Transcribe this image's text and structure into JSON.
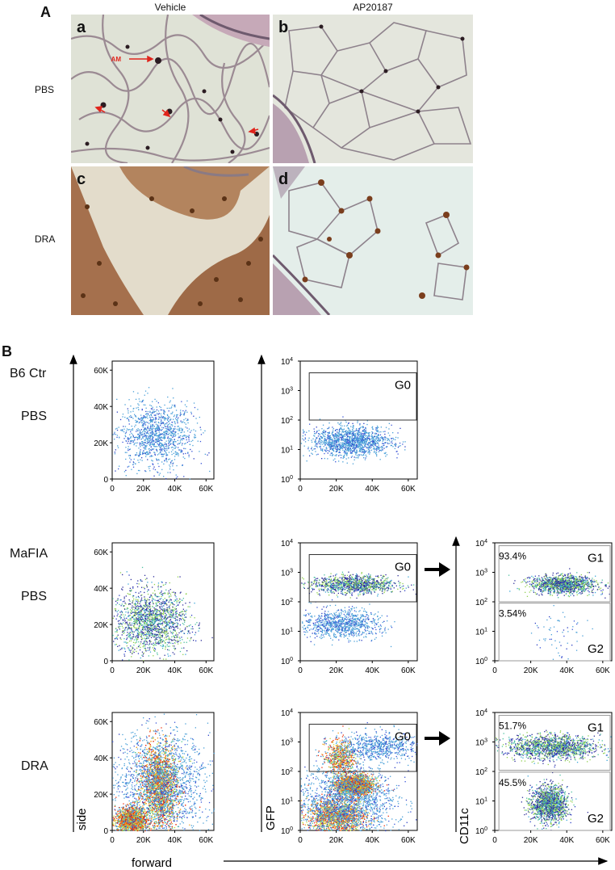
{
  "panel_a": {
    "letter": "A",
    "columns": [
      "Vehicle",
      "AP20187"
    ],
    "rows": [
      "PBS",
      "DRA"
    ],
    "subpanels": [
      "a",
      "b",
      "c",
      "d"
    ],
    "annotation": "AM"
  },
  "panel_b": {
    "letter": "B",
    "row_labels": [
      {
        "line1": "B6 Ctr",
        "line2": "PBS"
      },
      {
        "line1": "MaFIA",
        "line2": "PBS"
      },
      {
        "line1": "DRA",
        "line2": ""
      }
    ],
    "axis_labels": {
      "side": "side",
      "forward": "forward",
      "gfp": "GFP",
      "cd11c": "CD11c"
    },
    "gates": {
      "g0": "G0",
      "g1": "G1",
      "g2": "G2"
    },
    "percentages": {
      "mafia_g1": "93.4%",
      "mafia_g2": "3.54%",
      "dra_g1": "51.7%",
      "dra_g2": "45.5%"
    }
  },
  "chart_data": [
    {
      "type": "scatter",
      "name": "B6 Ctr PBS forward vs side",
      "x_ticks": [
        "0",
        "20K",
        "40K",
        "60K"
      ],
      "y_ticks": [
        "0",
        "20K",
        "40K",
        "60K"
      ],
      "xlim": [
        0,
        65000
      ],
      "ylim": [
        0,
        65000
      ],
      "clusters": [
        {
          "cx": 28000,
          "cy": 24000,
          "sx": 12000,
          "sy": 9000,
          "n": 1200,
          "density": "low"
        }
      ]
    },
    {
      "type": "scatter",
      "name": "B6 Ctr PBS forward vs GFP",
      "x_ticks": [
        "0",
        "20K",
        "40K",
        "60K"
      ],
      "y_ticks": [
        "10^0",
        "10^1",
        "10^2",
        "10^3",
        "10^4"
      ],
      "xlim": [
        0,
        65000
      ],
      "y_scale": "log",
      "ylim": [
        1,
        10000
      ],
      "gate": {
        "label": "G0",
        "x": [
          5000,
          65000
        ],
        "y": [
          100,
          4000
        ]
      },
      "clusters": [
        {
          "cx": 28000,
          "cy": 20,
          "sx": 11000,
          "sy_log": 0.25,
          "n": 1400,
          "density": "low"
        }
      ]
    },
    {
      "type": "scatter",
      "name": "MaFIA PBS forward vs side",
      "x_ticks": [
        "0",
        "20K",
        "40K",
        "60K"
      ],
      "y_ticks": [
        "0",
        "20K",
        "40K",
        "60K"
      ],
      "xlim": [
        0,
        65000
      ],
      "ylim": [
        0,
        65000
      ],
      "clusters": [
        {
          "cx": 24000,
          "cy": 22000,
          "sx": 12000,
          "sy": 9000,
          "n": 1700,
          "density": "medium"
        }
      ]
    },
    {
      "type": "scatter",
      "name": "MaFIA PBS forward vs GFP",
      "x_ticks": [
        "0",
        "20K",
        "40K",
        "60K"
      ],
      "y_ticks": [
        "10^0",
        "10^1",
        "10^2",
        "10^3",
        "10^4"
      ],
      "xlim": [
        0,
        65000
      ],
      "y_scale": "log",
      "ylim": [
        1,
        10000
      ],
      "gate": {
        "label": "G0",
        "x": [
          5000,
          65000
        ],
        "y": [
          100,
          4000
        ]
      },
      "clusters": [
        {
          "cx": 30000,
          "cy": 400,
          "sx": 12000,
          "sy_log": 0.15,
          "n": 1100,
          "density": "medium"
        },
        {
          "cx": 22000,
          "cy": 18,
          "sx": 11000,
          "sy_log": 0.25,
          "n": 900,
          "density": "low"
        }
      ]
    },
    {
      "type": "scatter",
      "name": "MaFIA PBS forward vs CD11c",
      "x_ticks": [
        "0",
        "20K",
        "40K",
        "60K"
      ],
      "y_ticks": [
        "10^0",
        "10^1",
        "10^2",
        "10^3",
        "10^4"
      ],
      "xlim": [
        0,
        65000
      ],
      "y_scale": "log",
      "ylim": [
        1,
        10000
      ],
      "gates": [
        {
          "label": "G1",
          "percent": 93.4,
          "x": [
            5000,
            65000
          ],
          "y": [
            100,
            8000
          ]
        },
        {
          "label": "G2",
          "percent": 3.54,
          "x": [
            5000,
            65000
          ],
          "y": [
            1,
            90
          ]
        }
      ],
      "clusters": [
        {
          "cx": 38000,
          "cy": 400,
          "sx": 9000,
          "sy_log": 0.15,
          "n": 1300,
          "density": "medium"
        },
        {
          "cx": 36000,
          "cy": 8,
          "sx": 7000,
          "sy_log": 0.4,
          "n": 60,
          "density": "low"
        }
      ]
    },
    {
      "type": "scatter",
      "name": "DRA forward vs side",
      "x_ticks": [
        "0",
        "20K",
        "40K",
        "60K"
      ],
      "y_ticks": [
        "0",
        "20K",
        "40K",
        "60K"
      ],
      "xlim": [
        0,
        65000
      ],
      "ylim": [
        0,
        65000
      ],
      "clusters": [
        {
          "cx": 30000,
          "cy": 24000,
          "sx": 6000,
          "sy": 12000,
          "n": 3000,
          "density": "high"
        },
        {
          "cx": 12000,
          "cy": 6000,
          "sx": 5000,
          "sy": 3500,
          "n": 1400,
          "density": "high"
        },
        {
          "cx": 30000,
          "cy": 26000,
          "sx": 16000,
          "sy": 14000,
          "n": 1600,
          "density": "low"
        }
      ]
    },
    {
      "type": "scatter",
      "name": "DRA forward vs GFP",
      "x_ticks": [
        "0",
        "20K",
        "40K",
        "60K"
      ],
      "y_ticks": [
        "10^0",
        "10^1",
        "10^2",
        "10^3",
        "10^4"
      ],
      "xlim": [
        0,
        65000
      ],
      "y_scale": "log",
      "ylim": [
        1,
        10000
      ],
      "gate": {
        "label": "G0",
        "x": [
          5000,
          65000
        ],
        "y": [
          100,
          4000
        ]
      },
      "clusters": [
        {
          "cx": 30000,
          "cy": 35,
          "sx": 5000,
          "sy_log": 0.18,
          "n": 1800,
          "density": "high"
        },
        {
          "cx": 20000,
          "cy": 3,
          "sx": 8000,
          "sy_log": 0.3,
          "n": 1500,
          "density": "high"
        },
        {
          "cx": 22000,
          "cy": 300,
          "sx": 4000,
          "sy_log": 0.3,
          "n": 600,
          "density": "high"
        },
        {
          "cx": 42000,
          "cy": 700,
          "sx": 12000,
          "sy_log": 0.25,
          "n": 700,
          "density": "low"
        },
        {
          "cx": 25000,
          "cy": 10,
          "sx": 14000,
          "sy_log": 0.6,
          "n": 1600,
          "density": "low"
        }
      ]
    },
    {
      "type": "scatter",
      "name": "DRA forward vs CD11c",
      "x_ticks": [
        "0",
        "20K",
        "40K",
        "60K"
      ],
      "y_ticks": [
        "10^0",
        "10^1",
        "10^2",
        "10^3",
        "10^4"
      ],
      "xlim": [
        0,
        65000
      ],
      "y_scale": "log",
      "ylim": [
        1,
        10000
      ],
      "gates": [
        {
          "label": "G1",
          "percent": 51.7,
          "x": [
            5000,
            65000
          ],
          "y": [
            110,
            8000
          ]
        },
        {
          "label": "G2",
          "percent": 45.5,
          "x": [
            5000,
            65000
          ],
          "y": [
            1,
            95
          ]
        }
      ],
      "clusters": [
        {
          "cx": 32000,
          "cy": 700,
          "sx": 13000,
          "sy_log": 0.2,
          "n": 1500,
          "density": "medium"
        },
        {
          "cx": 30000,
          "cy": 8,
          "sx": 5000,
          "sy_log": 0.3,
          "n": 1500,
          "density": "medium"
        }
      ]
    }
  ]
}
